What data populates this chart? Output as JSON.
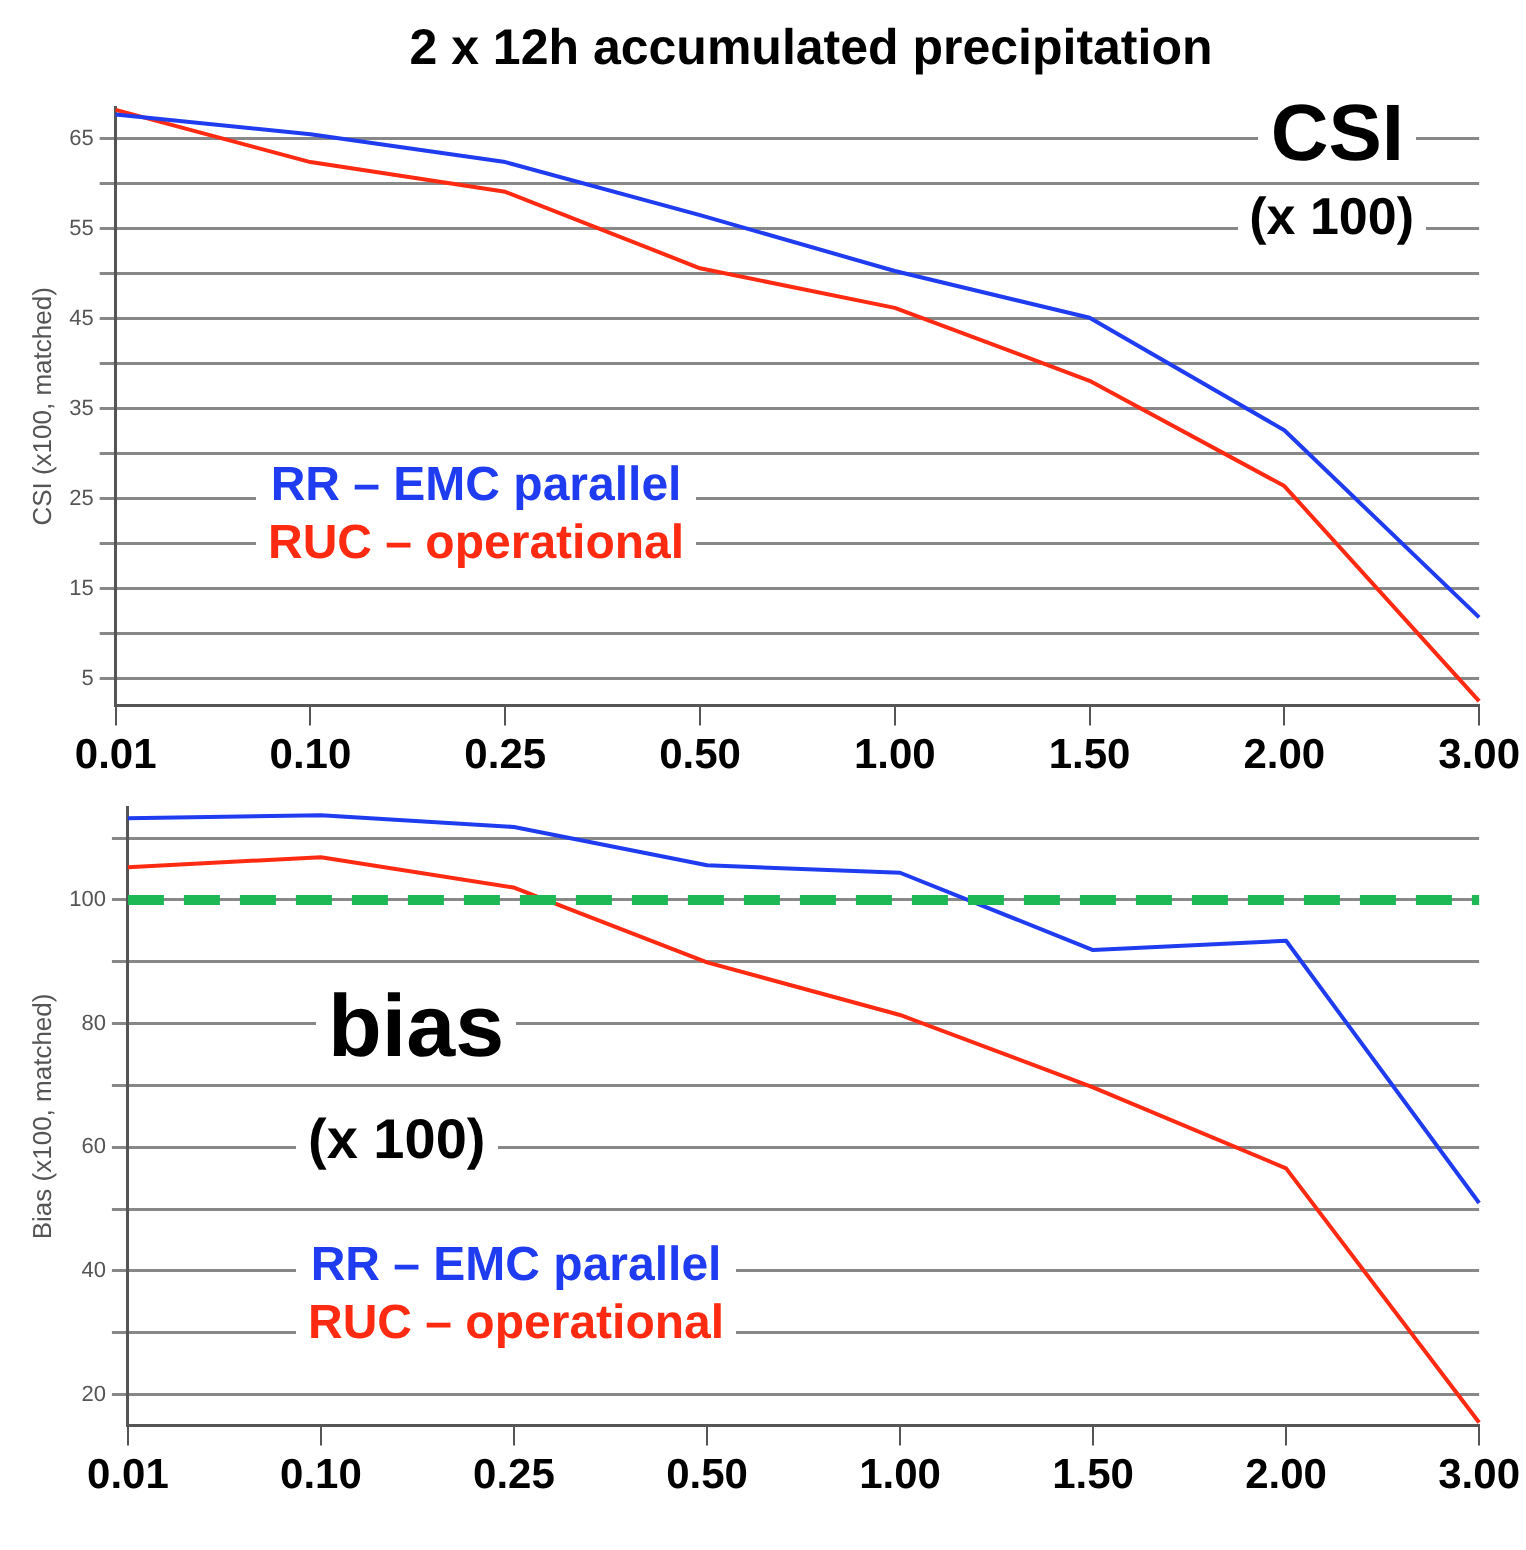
{
  "chart_data": [
    {
      "type": "line",
      "title": "2 x 12h accumulated precipitation",
      "ylabel": "CSI (x100, matched)",
      "annotations": [
        "CSI",
        "(x 100)"
      ],
      "categories": [
        "0.01",
        "0.10",
        "0.25",
        "0.50",
        "1.00",
        "1.50",
        "2.00",
        "3.00"
      ],
      "series": [
        {
          "name": "RR – EMC parallel",
          "color": "#1f3cf0",
          "values": [
            67.7,
            65.5,
            62.4,
            56.5,
            50.3,
            45.1,
            32.6,
            11.8
          ]
        },
        {
          "name": "RUC – operational",
          "color": "#ff2a12",
          "values": [
            68.2,
            62.4,
            59.1,
            50.6,
            46.2,
            38.1,
            26.4,
            2.5
          ]
        }
      ],
      "ylim": [
        2,
        68.5
      ],
      "yticks": [
        5,
        {
          "value": 10,
          "label": null
        },
        15,
        {
          "value": 20,
          "label": null
        },
        25,
        {
          "value": 30,
          "label": null
        },
        35,
        {
          "value": 40,
          "label": null
        },
        45,
        {
          "value": 50,
          "label": null
        },
        55,
        {
          "value": 60,
          "label": null
        },
        65
      ],
      "grid": "y",
      "legend": "left"
    },
    {
      "type": "line",
      "ylabel": "Bias (x100, matched)",
      "annotations": [
        "bias",
        "(x 100)"
      ],
      "categories": [
        "0.01",
        "0.10",
        "0.25",
        "0.50",
        "1.00",
        "1.50",
        "2.00",
        "3.00"
      ],
      "series": [
        {
          "name": "RR – EMC parallel",
          "color": "#1f3cf0",
          "values": [
            113.2,
            113.7,
            111.8,
            105.6,
            104.4,
            91.9,
            93.4,
            51
          ]
        },
        {
          "name": "RUC – operational",
          "color": "#ff2a12",
          "values": [
            105.3,
            106.9,
            102,
            89.9,
            81.4,
            69.7,
            56.6,
            15.5
          ]
        }
      ],
      "ylim": [
        15,
        115
      ],
      "yticks": [
        20,
        {
          "value": 30,
          "label": null
        },
        40,
        {
          "value": 50,
          "label": null
        },
        60,
        {
          "value": 70,
          "label": null
        },
        80,
        {
          "value": 90,
          "label": null
        },
        100,
        {
          "value": 110,
          "label": null
        }
      ],
      "ref_lines": [
        {
          "axis": "y",
          "value": 100,
          "color": "#1db954",
          "line_style": "dashed"
        }
      ],
      "grid": "y",
      "legend": "bottom left"
    }
  ]
}
